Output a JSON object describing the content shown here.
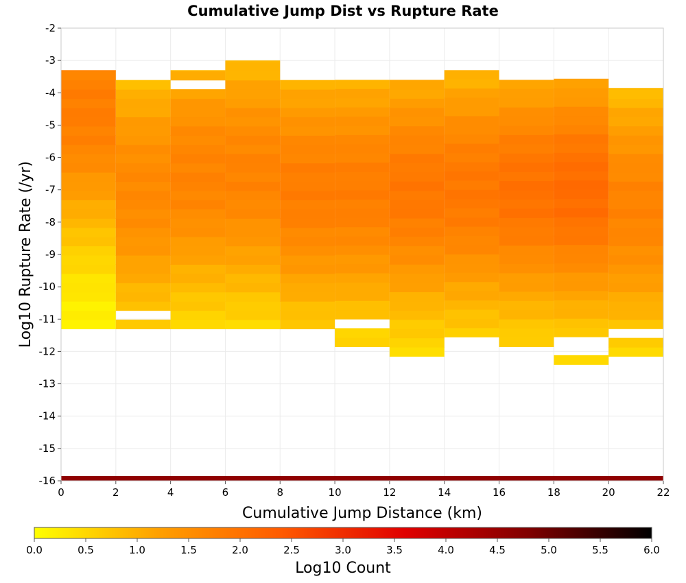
{
  "chart_data": {
    "type": "heatmap",
    "title": "Cumulative Jump Dist vs Rupture Rate",
    "xlabel": "Cumulative Jump Distance (km)",
    "ylabel": "Log10 Rupture Rate (/yr)",
    "xlim": [
      0,
      22
    ],
    "ylim": [
      -16,
      -2
    ],
    "x_ticks": [
      "0",
      "2",
      "4",
      "6",
      "8",
      "10",
      "12",
      "14",
      "16",
      "18",
      "20",
      "22"
    ],
    "y_ticks": [
      "-2",
      "-3",
      "-4",
      "-5",
      "-6",
      "-7",
      "-8",
      "-9",
      "-10",
      "-11",
      "-12",
      "-13",
      "-14",
      "-15",
      "-16"
    ],
    "grid": true,
    "x_bin_width": 2,
    "y_bin_height": 0.285,
    "x_bin_starts": [
      0,
      2,
      4,
      6,
      8,
      10,
      12,
      14,
      16,
      18,
      20
    ],
    "colorbar": {
      "label": "Log10 Count",
      "min": 0.0,
      "max": 6.0,
      "ticks": [
        "0.0",
        "0.5",
        "1.0",
        "1.5",
        "2.0",
        "2.5",
        "3.0",
        "3.5",
        "4.0",
        "4.5",
        "5.0",
        "5.5",
        "6.0"
      ],
      "colors": [
        "#ffff00",
        "#ffa000",
        "#ff5a00",
        "#e00000",
        "#800000",
        "#000000"
      ]
    },
    "columns": [
      {
        "x": 0,
        "log_rate_min": -11.3,
        "log_rate_max": -3.3,
        "peak_log_rate": -4.5,
        "peak_log_count": 1.8
      },
      {
        "x": 2,
        "log_rate_min": -11.3,
        "log_rate_max": -3.6,
        "peak_log_rate": -7.0,
        "peak_log_count": 1.6
      },
      {
        "x": 4,
        "log_rate_min": -11.3,
        "log_rate_max": -3.3,
        "peak_log_rate": -6.5,
        "peak_log_count": 1.7
      },
      {
        "x": 6,
        "log_rate_min": -11.3,
        "log_rate_max": -3.0,
        "peak_log_rate": -6.5,
        "peak_log_count": 1.7
      },
      {
        "x": 8,
        "log_rate_min": -11.3,
        "log_rate_max": -3.6,
        "peak_log_rate": -7.0,
        "peak_log_count": 1.8
      },
      {
        "x": 10,
        "log_rate_min": -11.85,
        "log_rate_max": -3.6,
        "peak_log_rate": -7.0,
        "peak_log_count": 1.8
      },
      {
        "x": 12,
        "log_rate_min": -12.15,
        "log_rate_max": -3.6,
        "peak_log_rate": -7.0,
        "peak_log_count": 1.9
      },
      {
        "x": 14,
        "log_rate_min": -11.55,
        "log_rate_max": -3.3,
        "peak_log_rate": -7.0,
        "peak_log_count": 1.9
      },
      {
        "x": 16,
        "log_rate_min": -11.85,
        "log_rate_max": -3.6,
        "peak_log_rate": -7.0,
        "peak_log_count": 2.0
      },
      {
        "x": 18,
        "log_rate_min": -12.4,
        "log_rate_max": -3.0,
        "peak_log_rate": -7.0,
        "peak_log_count": 2.1
      },
      {
        "x": 20,
        "log_rate_min": -12.15,
        "log_rate_max": -3.85,
        "peak_log_rate": -7.5,
        "peak_log_count": 1.7
      }
    ],
    "empty_bins": [
      {
        "x": 4,
        "log_rate": -3.72
      },
      {
        "x": 2,
        "log_rate": -10.87
      },
      {
        "x": 10,
        "log_rate": -11.16
      },
      {
        "x": 18,
        "log_rate": -3.3
      },
      {
        "x": 18,
        "log_rate": -11.72
      },
      {
        "x": 18,
        "log_rate": -12.0
      },
      {
        "x": 20,
        "log_rate": -11.44
      }
    ],
    "bottom_band": {
      "log_rate_min": -16.0,
      "log_rate_max": -15.85,
      "log_count": 4.6
    }
  }
}
